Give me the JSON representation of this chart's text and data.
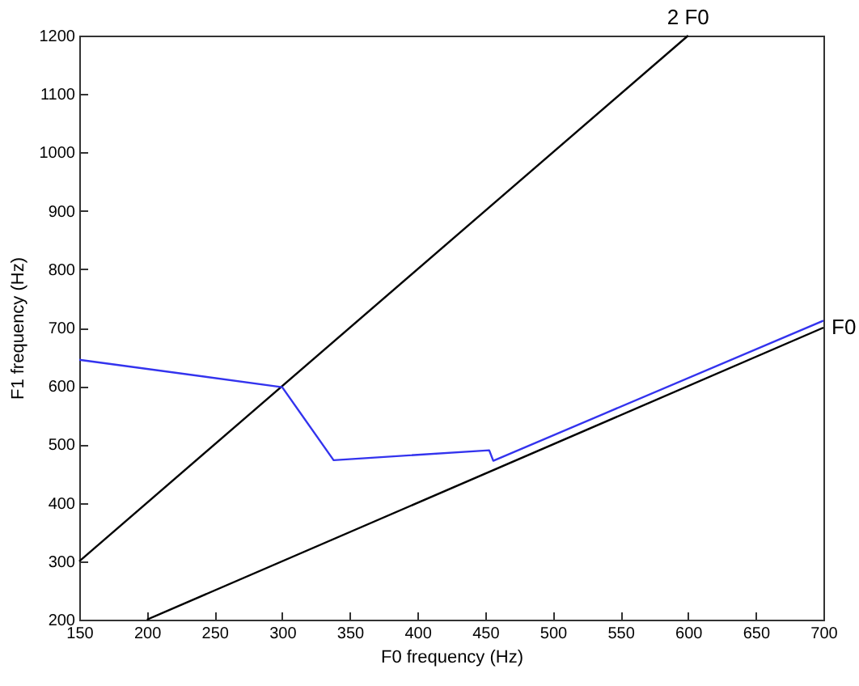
{
  "chart_data": {
    "type": "line",
    "xlabel": "F0 frequency (Hz)",
    "ylabel": "F1 frequency (Hz)",
    "xlim": [
      150,
      700
    ],
    "ylim": [
      200,
      1200
    ],
    "xticks": [
      150,
      200,
      250,
      300,
      350,
      400,
      450,
      500,
      550,
      600,
      650,
      700
    ],
    "yticks": [
      200,
      300,
      400,
      500,
      600,
      700,
      800,
      900,
      1000,
      1100,
      1200
    ],
    "grid": false,
    "marker": "none",
    "line_style": "solid",
    "series": [
      {
        "color": "#000000",
        "x": [
          150,
          600
        ],
        "values": [
          300,
          1200
        ]
      },
      {
        "color": "#000000",
        "x": [
          200,
          700
        ],
        "values": [
          200,
          700
        ]
      },
      {
        "color": "#3333ee",
        "x": [
          150,
          300,
          338,
          453,
          456,
          700
        ],
        "values": [
          645,
          598,
          473,
          490,
          472,
          712
        ]
      }
    ],
    "annotations": [
      {
        "text": "2 F0",
        "x": 600,
        "y": 1200
      },
      {
        "text": "F0",
        "x": 700,
        "y": 700
      }
    ]
  }
}
